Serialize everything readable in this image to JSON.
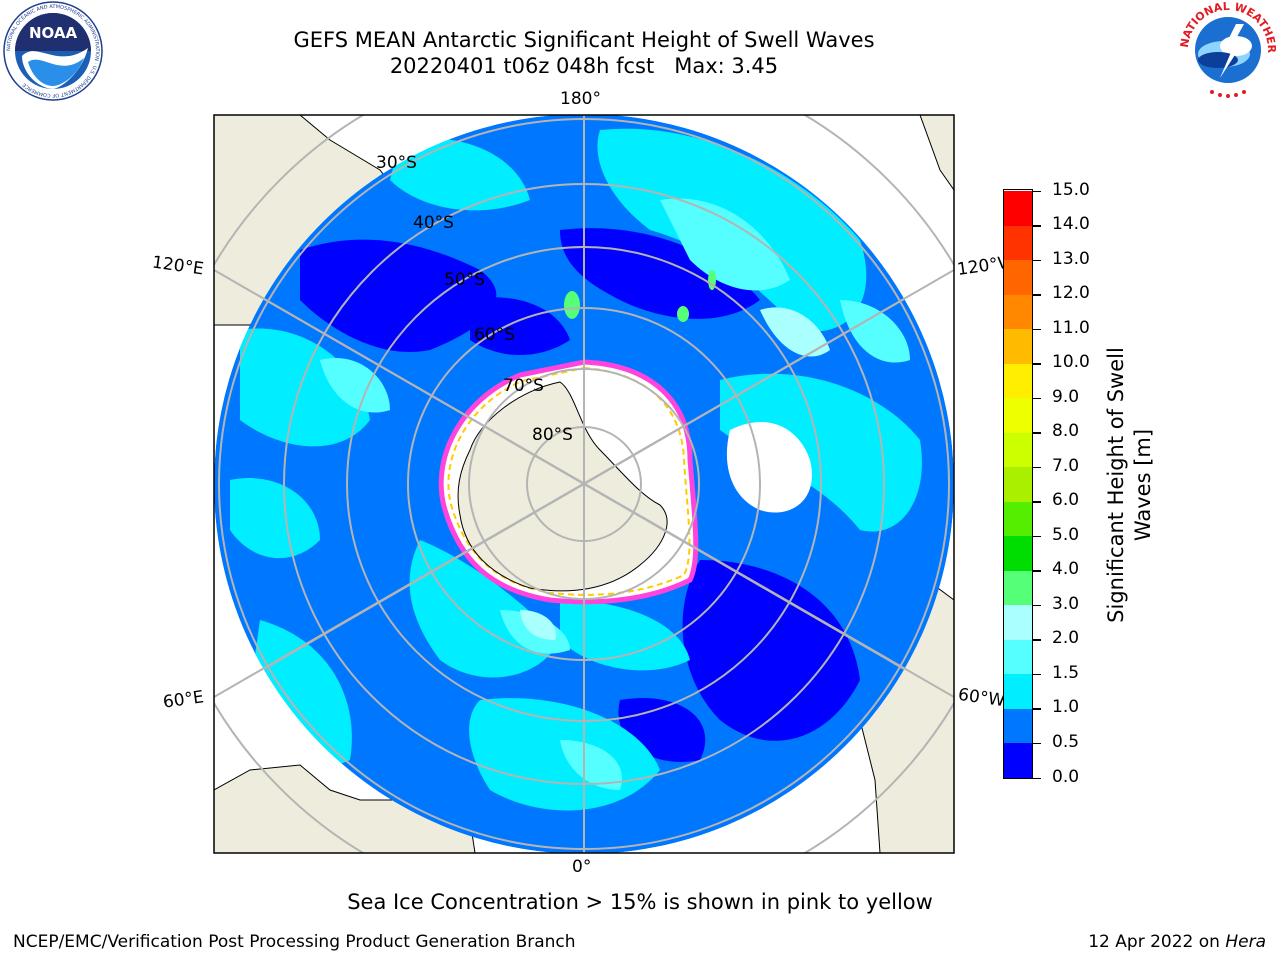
{
  "header": {
    "title_line1": "GEFS MEAN Antarctic Significant Height of Swell Waves",
    "title_line2": "20220401 t06z 048h fcst   Max: 3.45"
  },
  "logos": {
    "noaa_text": "NOAA",
    "noaa_ring_text": "NATIONAL OCEANIC AND ATMOSPHERIC ADMINISTRATION · U.S. DEPARTMENT OF COMMERCE",
    "nws_ring_text": "NATIONAL WEATHER SERVICE"
  },
  "map": {
    "projection": "south-polar-stereographic",
    "longitude_labels": {
      "top": "180°",
      "bottom": "0°",
      "left_upper": "120°E",
      "left_lower": "60°E",
      "right_upper": "120°W",
      "right_lower": "60°W"
    },
    "latitude_labels": [
      "30°S",
      "40°S",
      "50°S",
      "60°S",
      "70°S",
      "80°S"
    ],
    "land_color": "#eeecdc",
    "ocean_base_color": "#0077ff",
    "grid_color": "#b4b4b4"
  },
  "colorbar": {
    "title": "Significant Height of Swell\nWaves [m]",
    "tick_labels": [
      "0.0",
      "0.5",
      "1.0",
      "1.5",
      "2.0",
      "3.0",
      "4.0",
      "5.0",
      "6.0",
      "7.0",
      "8.0",
      "9.0",
      "10.0",
      "11.0",
      "12.0",
      "13.0",
      "14.0",
      "15.0"
    ],
    "colors": [
      "#0000ff",
      "#0077ff",
      "#00eeff",
      "#55ffff",
      "#aaffff",
      "#55ff77",
      "#00dd00",
      "#55ee00",
      "#aaee00",
      "#ccff00",
      "#eeff00",
      "#ffee00",
      "#ffbb00",
      "#ff8800",
      "#ff6600",
      "#ff3300",
      "#ff0000"
    ]
  },
  "notes": {
    "sea_ice": "Sea Ice Concentration > 15% is shown in pink to yellow"
  },
  "footer": {
    "left": "NCEP/EMC/Verification Post Processing Product Generation Branch",
    "date": "12 Apr 2022 on ",
    "host": "Hera"
  }
}
